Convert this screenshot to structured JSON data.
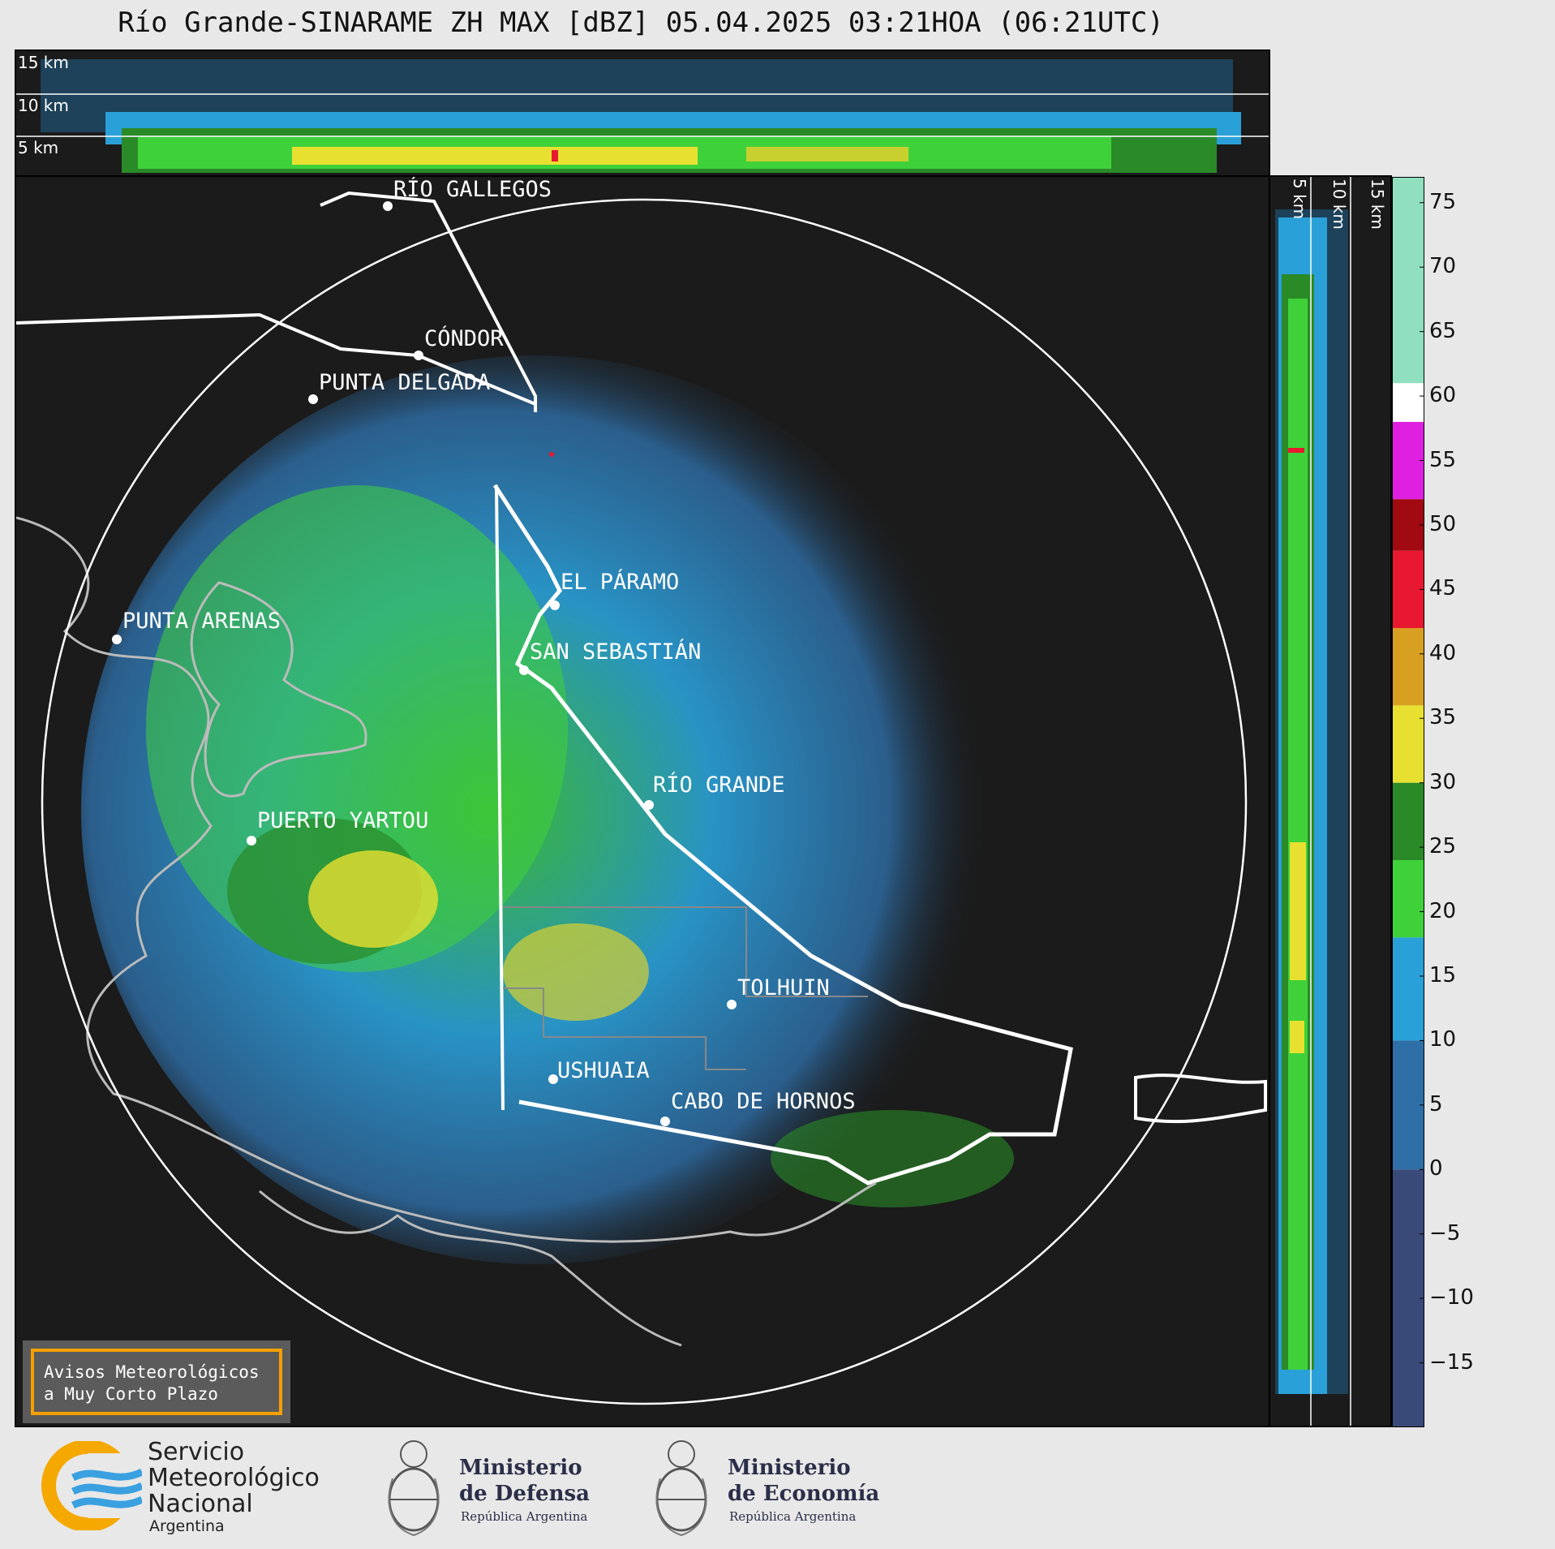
{
  "title": "Río Grande-SINARAME ZH MAX [dBZ] 05.04.2025 03:21HOA (06:21UTC)",
  "top_panel": {
    "altitude_labels": [
      "15 km",
      "10 km",
      "5 km"
    ]
  },
  "side_panel": {
    "altitude_labels": [
      "5 km",
      "10 km",
      "15 km"
    ]
  },
  "cities": [
    {
      "name": "RÍO GALLEGOS"
    },
    {
      "name": "CÓNDOR"
    },
    {
      "name": "PUNTA DELGADA"
    },
    {
      "name": "EL PÁRAMO"
    },
    {
      "name": "SAN SEBASTIÁN"
    },
    {
      "name": "PUNTA ARENAS"
    },
    {
      "name": "RÍO GRANDE"
    },
    {
      "name": "PUERTO YARTOU"
    },
    {
      "name": "TOLHUIN"
    },
    {
      "name": "USHUAIA"
    },
    {
      "name": "CABO DE HORNOS"
    }
  ],
  "colorbar": {
    "unit": "dBZ",
    "ticks": [
      "75",
      "70",
      "65",
      "60",
      "55",
      "50",
      "45",
      "40",
      "35",
      "30",
      "25",
      "20",
      "15",
      "10",
      "5",
      "0",
      "−5",
      "−10",
      "−15"
    ],
    "bands": [
      {
        "from": -20,
        "to": 0,
        "color": "#3a4a78"
      },
      {
        "from": 0,
        "to": 10,
        "color": "#2f6fa8"
      },
      {
        "from": 10,
        "to": 18,
        "color": "#2aa0d8"
      },
      {
        "from": 18,
        "to": 24,
        "color": "#3fd13a"
      },
      {
        "from": 24,
        "to": 30,
        "color": "#2a8a28"
      },
      {
        "from": 30,
        "to": 36,
        "color": "#e8e030"
      },
      {
        "from": 36,
        "to": 42,
        "color": "#d8a020"
      },
      {
        "from": 42,
        "to": 48,
        "color": "#e81830"
      },
      {
        "from": 48,
        "to": 52,
        "color": "#a00a10"
      },
      {
        "from": 52,
        "to": 58,
        "color": "#e020e0"
      },
      {
        "from": 58,
        "to": 61,
        "color": "#ffffff"
      },
      {
        "from": 61,
        "to": 77,
        "color": "#90e0c0"
      }
    ]
  },
  "badge": {
    "line1": "Avisos Meteorológicos",
    "line2": "a Muy Corto Plazo"
  },
  "logos": {
    "smn": [
      "Servicio",
      "Meteorológico",
      "Nacional",
      "Argentina"
    ],
    "defensa": [
      "Ministerio",
      "de Defensa",
      "República Argentina"
    ],
    "economia": [
      "Ministerio",
      "de Economía",
      "República Argentina"
    ]
  }
}
